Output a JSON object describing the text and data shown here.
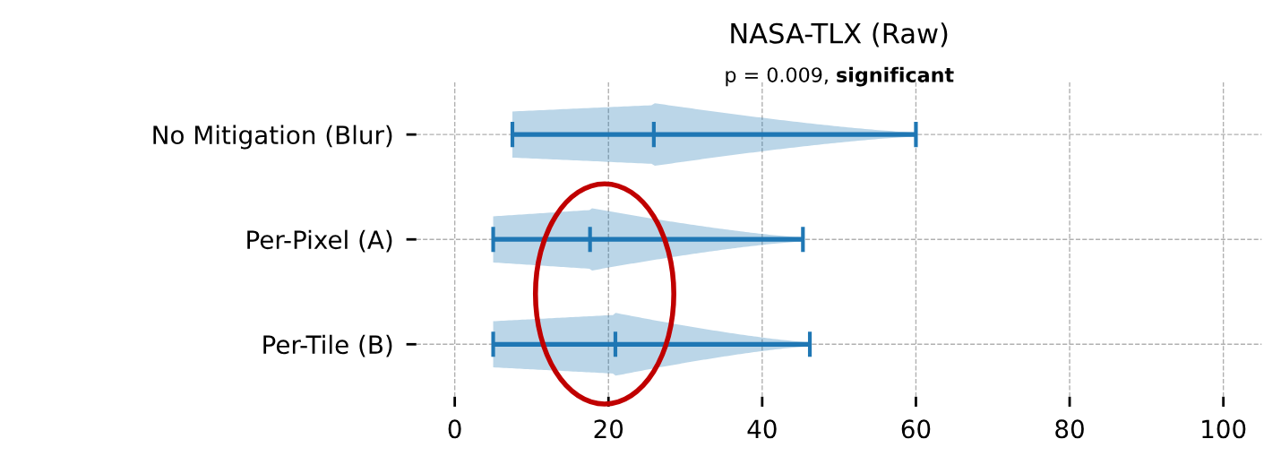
{
  "chart_data": {
    "type": "bar",
    "orientation": "horizontal",
    "title": "NASA-TLX (Raw)",
    "subtitle": "p = 0.009, significant",
    "categories": [
      "No Mitigation (Blur)",
      "Per-Pixel (A)",
      "Per-Tile (B)"
    ],
    "series": [
      {
        "color": "#1f77b4",
        "base": [
          7.5,
          5,
          5
        ],
        "values": [
          18.4,
          12.6,
          15.9
        ]
      },
      {
        "color": "#1f77b4",
        "base": [
          25.9,
          17.6,
          20.9
        ],
        "values": [
          34.1,
          27.7,
          25.3
        ]
      }
    ],
    "xlim": [
      -5,
      105
    ],
    "xticks": [
      0,
      20,
      40,
      60,
      80,
      100
    ],
    "grid": true
  }
}
